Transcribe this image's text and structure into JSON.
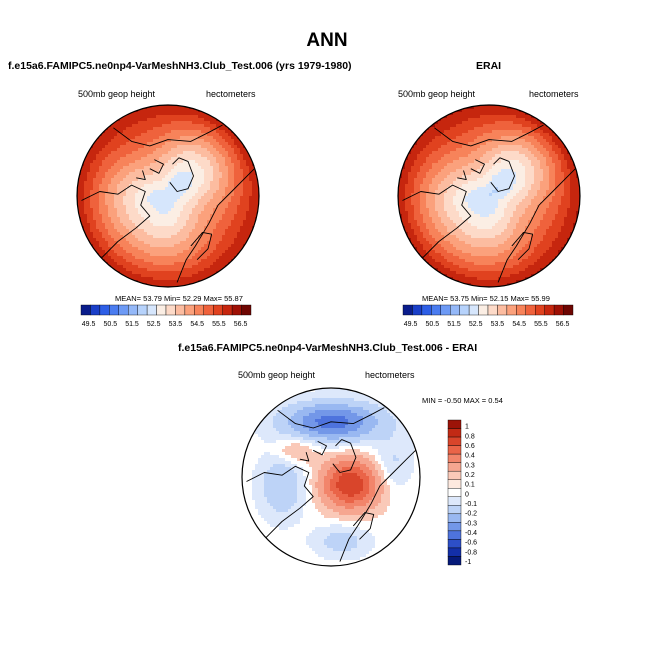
{
  "page_title": "ANN",
  "chart_data": [
    {
      "type": "heatmap",
      "projection": "north-polar-stereographic",
      "title": "f.e15a6.FAMIPC5.ne0np4-VarMeshNH3.Club_Test.006 (yrs 1979-1980)",
      "left_label": "500mb geop height",
      "right_label": "hectometers",
      "stats": {
        "mean_label": "MEAN=",
        "mean": "53.79",
        "min_label": "Min=",
        "min": "52.29",
        "max_label": "Max=",
        "max": "55.87"
      },
      "field": {
        "pole_value": 52.4,
        "equator_value": 55.9,
        "trough_lon": 100
      },
      "colorbar": {
        "ticks": [
          "49.5",
          "50.5",
          "51.5",
          "52.5",
          "53.5",
          "54.5",
          "55.5",
          "56.5"
        ],
        "colors": [
          "#0a1d8c",
          "#1a3fc8",
          "#2d5ee6",
          "#4a7cf0",
          "#6d9af5",
          "#94b8f8",
          "#b6d2fb",
          "#d6e6fc",
          "#fbeee4",
          "#fddac8",
          "#fcbca0",
          "#fba17c",
          "#f7835a",
          "#ef623c",
          "#e0421f",
          "#c6260e",
          "#9e1005",
          "#6e0602"
        ]
      }
    },
    {
      "type": "heatmap",
      "projection": "north-polar-stereographic",
      "title": "ERAI",
      "left_label": "500mb geop height",
      "right_label": "hectometers",
      "stats": {
        "mean_label": "MEAN=",
        "mean": "53.75",
        "min_label": "Min=",
        "min": "52.15",
        "max_label": "Max=",
        "max": "55.99"
      },
      "field": {
        "pole_value": 52.3,
        "equator_value": 55.95,
        "trough_lon": 100
      },
      "colorbar": {
        "ticks": [
          "49.5",
          "50.5",
          "51.5",
          "52.5",
          "53.5",
          "54.5",
          "55.5",
          "56.5"
        ],
        "colors": [
          "#0a1d8c",
          "#1a3fc8",
          "#2d5ee6",
          "#4a7cf0",
          "#6d9af5",
          "#94b8f8",
          "#b6d2fb",
          "#d6e6fc",
          "#fbeee4",
          "#fddac8",
          "#fcbca0",
          "#fba17c",
          "#f7835a",
          "#ef623c",
          "#e0421f",
          "#c6260e",
          "#9e1005",
          "#6e0602"
        ]
      }
    },
    {
      "type": "heatmap",
      "projection": "north-polar-stereographic",
      "title": "f.e15a6.FAMIPC5.ne0np4-VarMeshNH3.Club_Test.006 - ERAI",
      "left_label": "500mb geop height",
      "right_label": "hectometers",
      "stats_text": "MIN = -0.50 MAX =  0.54",
      "difference_features": [
        {
          "label": "north-pacific-negative",
          "value": -0.45
        },
        {
          "label": "siberia-positive",
          "value": 0.5
        },
        {
          "label": "atlantic-negative",
          "value": -0.2
        },
        {
          "label": "pacific-rim-negative",
          "value": -0.15
        }
      ],
      "colorbar": {
        "ticks": [
          "1",
          "0.8",
          "0.6",
          "0.4",
          "0.3",
          "0.2",
          "0.1",
          "0",
          "-0.1",
          "-0.2",
          "-0.3",
          "-0.4",
          "-0.6",
          "-0.8",
          "-1"
        ],
        "colors": [
          "#9c1308",
          "#c22a15",
          "#d9452b",
          "#ea6448",
          "#f2856b",
          "#f6a690",
          "#fac9b8",
          "#fde9df",
          "#ffffff",
          "#dde8fb",
          "#bdd3f7",
          "#99b8f1",
          "#7397e8",
          "#4e73dd",
          "#2d4fc8",
          "#132fa8",
          "#061a7a"
        ]
      }
    }
  ]
}
